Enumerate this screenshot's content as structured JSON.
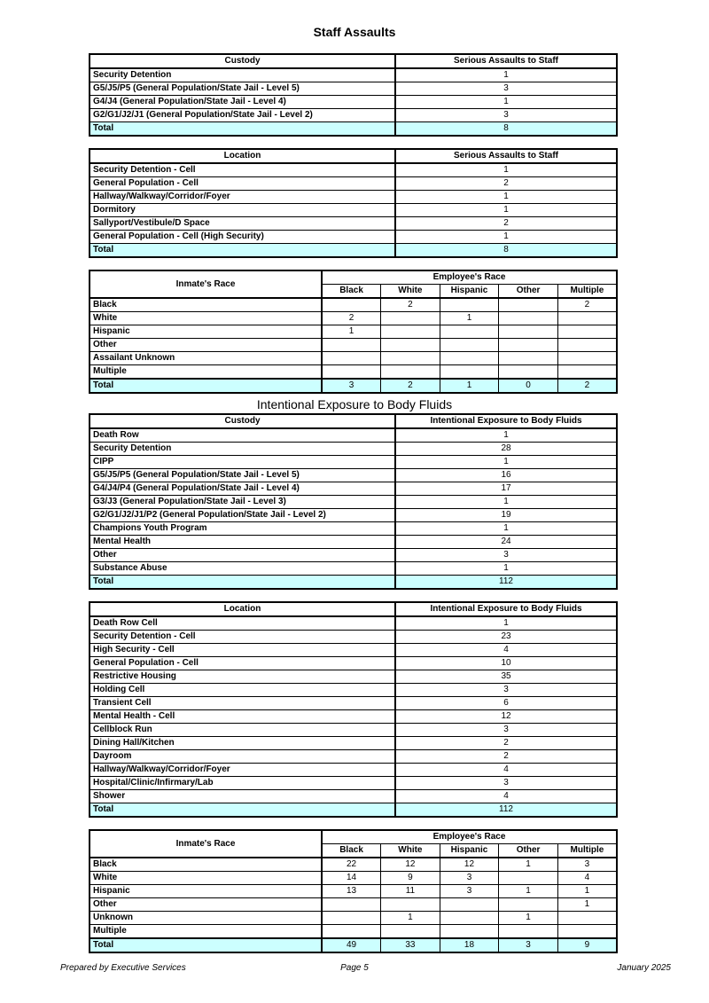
{
  "document": {
    "colors": {
      "total_row_bg": "#CCFFFF",
      "border": "#000000"
    },
    "footer": {
      "left": "Prepared by Executive Services",
      "center": "Page 5",
      "right": "January 2025"
    },
    "sections": [
      {
        "title": "Staff Assaults",
        "title_style": "bold",
        "tables": [
          {
            "name": "assaults-by-custody-table",
            "type": "simple",
            "header": [
              "Custody",
              "Serious Assaults to Staff"
            ],
            "rows": [
              [
                "Security Detention",
                "1"
              ],
              [
                "G5/J5/P5 (General Population/State Jail - Level 5)",
                "3"
              ],
              [
                "G4/J4 (General Population/State Jail - Level 4)",
                "1"
              ],
              [
                "G2/G1/J2/J1 (General Population/State Jail - Level 2)",
                "3"
              ]
            ],
            "total": [
              "Total",
              "8"
            ]
          },
          {
            "name": "assaults-by-location-table",
            "type": "simple",
            "header": [
              "Location",
              "Serious Assaults to Staff"
            ],
            "rows": [
              [
                "Security Detention - Cell",
                "1"
              ],
              [
                "General Population - Cell",
                "2"
              ],
              [
                "Hallway/Walkway/Corridor/Foyer",
                "1"
              ],
              [
                "Dormitory",
                "1"
              ],
              [
                "Sallyport/Vestibule/D Space",
                "2"
              ],
              [
                "General Population - Cell (High Security)",
                "1"
              ]
            ],
            "total": [
              "Total",
              "8"
            ]
          },
          {
            "name": "assaults-race-matrix-table",
            "type": "matrix",
            "row_header": "Inmate's Race",
            "group_header": "Employee's Race",
            "columns": [
              "Black",
              "White",
              "Hispanic",
              "Other",
              "Multiple"
            ],
            "rows": [
              [
                "Black",
                "",
                "2",
                "",
                "",
                "2"
              ],
              [
                "White",
                "2",
                "",
                "1",
                "",
                ""
              ],
              [
                "Hispanic",
                "1",
                "",
                "",
                "",
                ""
              ],
              [
                "Other",
                "",
                "",
                "",
                "",
                ""
              ],
              [
                "Assailant Unknown",
                "",
                "",
                "",
                "",
                ""
              ],
              [
                "Multiple",
                "",
                "",
                "",
                "",
                ""
              ]
            ],
            "total": [
              "Total",
              "3",
              "2",
              "1",
              "0",
              "2"
            ]
          }
        ]
      },
      {
        "title": "Intentional Exposure to Body Fluids",
        "title_style": "regular",
        "tables": [
          {
            "name": "exposure-by-custody-table",
            "type": "simple",
            "header": [
              "Custody",
              "Intentional Exposure to Body Fluids"
            ],
            "rows": [
              [
                "Death Row",
                "1"
              ],
              [
                "Security Detention",
                "28"
              ],
              [
                "CIPP",
                "1"
              ],
              [
                "G5/J5/P5 (General Population/State Jail - Level 5)",
                "16"
              ],
              [
                "G4/J4/P4 (General Population/State Jail - Level 4)",
                "17"
              ],
              [
                "G3/J3 (General Population/State Jail - Level 3)",
                "1"
              ],
              [
                "G2/G1/J2/J1/P2 (General Population/State Jail - Level 2)",
                "19"
              ],
              [
                "Champions Youth Program",
                "1"
              ],
              [
                "Mental Health",
                "24"
              ],
              [
                "Other",
                "3"
              ],
              [
                "Substance Abuse",
                "1"
              ]
            ],
            "total": [
              "Total",
              "112"
            ]
          },
          {
            "name": "exposure-by-location-table",
            "type": "simple",
            "header": [
              "Location",
              "Intentional Exposure to Body Fluids"
            ],
            "rows": [
              [
                "Death Row Cell",
                "1"
              ],
              [
                "Security Detention - Cell",
                "23"
              ],
              [
                "High Security - Cell",
                "4"
              ],
              [
                "General Population - Cell",
                "10"
              ],
              [
                "Restrictive Housing",
                "35"
              ],
              [
                "Holding Cell",
                "3"
              ],
              [
                "Transient Cell",
                "6"
              ],
              [
                "Mental Health - Cell",
                "12"
              ],
              [
                "Cellblock Run",
                "3"
              ],
              [
                "Dining Hall/Kitchen",
                "2"
              ],
              [
                "Dayroom",
                "2"
              ],
              [
                "Hallway/Walkway/Corridor/Foyer",
                "4"
              ],
              [
                "Hospital/Clinic/Infirmary/Lab",
                "3"
              ],
              [
                "Shower",
                "4"
              ]
            ],
            "total": [
              "Total",
              "112"
            ]
          },
          {
            "name": "exposure-race-matrix-table",
            "type": "matrix",
            "row_header": "Inmate's Race",
            "group_header": "Employee's Race",
            "columns": [
              "Black",
              "White",
              "Hispanic",
              "Other",
              "Multiple"
            ],
            "rows": [
              [
                "Black",
                "22",
                "12",
                "12",
                "1",
                "3"
              ],
              [
                "White",
                "14",
                "9",
                "3",
                "",
                "4"
              ],
              [
                "Hispanic",
                "13",
                "11",
                "3",
                "1",
                "1"
              ],
              [
                "Other",
                "",
                "",
                "",
                "",
                "1"
              ],
              [
                "Unknown",
                "",
                "1",
                "",
                "1",
                ""
              ],
              [
                "Multiple",
                "",
                "",
                "",
                "",
                ""
              ]
            ],
            "total": [
              "Total",
              "49",
              "33",
              "18",
              "3",
              "9"
            ]
          }
        ]
      }
    ]
  }
}
